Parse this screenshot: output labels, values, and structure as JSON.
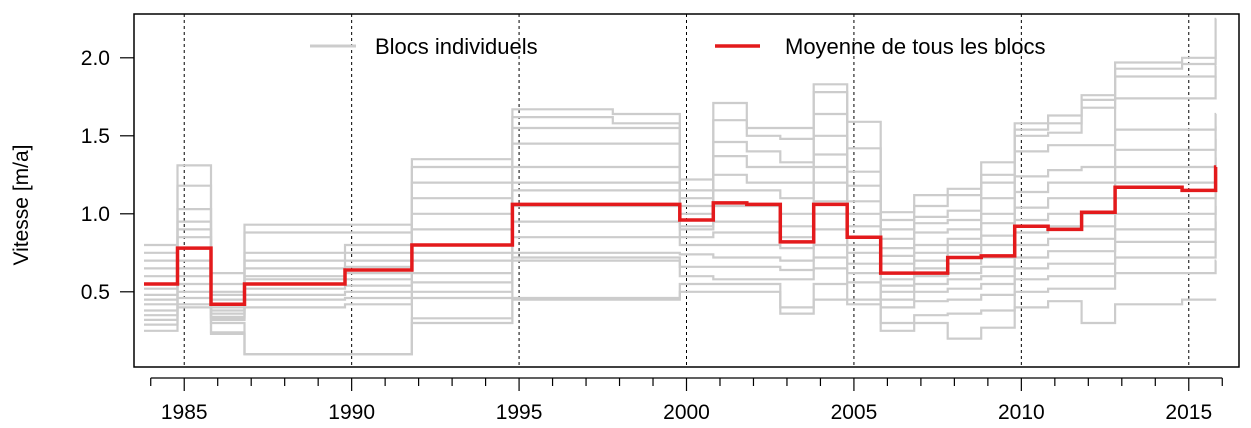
{
  "chart_data": {
    "type": "line",
    "title": "",
    "xlabel": "",
    "ylabel": "Vitesse [m/a]",
    "xlim": [
      1983.5,
      2016.5
    ],
    "ylim": [
      0.0,
      2.3
    ],
    "x_ticks": [
      1985,
      1990,
      1995,
      2000,
      2005,
      2010,
      2015
    ],
    "x_minor_ticks": [
      1984,
      1985,
      1986,
      1987,
      1988,
      1989,
      1990,
      1991,
      1992,
      1993,
      1994,
      1995,
      1996,
      1997,
      1998,
      1999,
      2000,
      2001,
      2002,
      2003,
      2004,
      2005,
      2006,
      2007,
      2008,
      2009,
      2010,
      2011,
      2012,
      2013,
      2014,
      2015,
      2016
    ],
    "y_ticks": [
      0.5,
      1.0,
      1.5,
      2.0
    ],
    "y_tick_labels": [
      "0.5",
      "1.0",
      "1.5",
      "2.0"
    ],
    "x_tick_labels": [
      "1985",
      "1990",
      "1995",
      "2000",
      "2005",
      "2010",
      "2015"
    ],
    "vertical_guides": [
      1985,
      1990,
      1995,
      2000,
      2005,
      2010,
      2015
    ],
    "legend": {
      "position": "top",
      "entries": [
        {
          "label": "Blocs individuels",
          "color": "#cccccc"
        },
        {
          "label": "Moyenne de tous les blocs",
          "color": "#e31a1c"
        }
      ]
    },
    "series": [
      {
        "name": "Moyenne de tous les blocs",
        "color": "#e31a1c",
        "step": true,
        "x": [
          1983.8,
          1984.8,
          1985.8,
          1986.8,
          1989.8,
          1991.8,
          1994.8,
          1997.8,
          1999.8,
          2000.8,
          2001.8,
          2002.8,
          2003.8,
          2004.8,
          2005.8,
          2006.8,
          2007.8,
          2008.8,
          2009.8,
          2010.8,
          2011.8,
          2012.8,
          2014.8,
          2015.8
        ],
        "values": [
          0.55,
          0.78,
          0.42,
          0.55,
          0.64,
          0.8,
          1.06,
          1.06,
          0.96,
          1.07,
          1.06,
          0.82,
          1.06,
          0.85,
          0.62,
          0.62,
          0.72,
          0.73,
          0.92,
          0.9,
          1.01,
          1.17,
          1.15,
          1.3
        ]
      }
    ],
    "individual_blocks": {
      "color": "#cccccc",
      "step": true,
      "x": [
        1983.8,
        1984.8,
        1985.8,
        1986.8,
        1989.8,
        1991.8,
        1994.8,
        1997.8,
        1999.8,
        2000.8,
        2001.8,
        2002.8,
        2003.8,
        2004.8,
        2005.8,
        2006.8,
        2007.8,
        2008.8,
        2009.8,
        2010.8,
        2011.8,
        2012.8,
        2014.8,
        2015.8
      ],
      "lines": [
        [
          0.8,
          1.31,
          0.62,
          0.93,
          0.93,
          1.35,
          1.67,
          1.64,
          1.22,
          1.71,
          1.55,
          1.55,
          1.83,
          1.59,
          1.01,
          1.12,
          1.16,
          1.33,
          1.58,
          1.63,
          1.76,
          1.97,
          2.0,
          2.25
        ],
        [
          0.75,
          1.18,
          0.55,
          0.88,
          0.88,
          1.3,
          1.62,
          1.58,
          1.15,
          1.6,
          1.5,
          1.48,
          1.78,
          1.42,
          0.96,
          1.05,
          1.12,
          1.25,
          1.54,
          1.58,
          1.73,
          1.93,
          1.96,
          2.05
        ],
        [
          0.7,
          1.03,
          0.5,
          0.75,
          0.8,
          1.2,
          1.55,
          1.55,
          1.1,
          1.46,
          1.4,
          1.33,
          1.64,
          1.27,
          0.9,
          0.98,
          1.02,
          1.2,
          1.5,
          1.52,
          1.68,
          1.88,
          1.88,
          1.95
        ],
        [
          0.65,
          0.95,
          0.48,
          0.7,
          0.75,
          1.1,
          1.45,
          1.45,
          1.05,
          1.37,
          1.3,
          1.3,
          1.5,
          1.18,
          0.84,
          0.94,
          0.96,
          1.1,
          1.4,
          1.44,
          1.44,
          1.74,
          1.74,
          1.88
        ],
        [
          0.6,
          0.9,
          0.45,
          0.65,
          0.7,
          1.0,
          1.3,
          1.3,
          1.0,
          1.25,
          1.2,
          1.2,
          1.38,
          1.08,
          0.78,
          0.88,
          0.9,
          1.0,
          1.24,
          1.28,
          1.3,
          1.54,
          1.54,
          1.64
        ],
        [
          0.55,
          0.85,
          0.42,
          0.6,
          0.66,
          0.9,
          1.2,
          1.2,
          0.96,
          1.15,
          1.15,
          1.1,
          1.3,
          1.0,
          0.73,
          0.8,
          0.84,
          0.94,
          1.14,
          1.2,
          1.2,
          1.41,
          1.41,
          1.56
        ],
        [
          0.52,
          0.78,
          0.4,
          0.58,
          0.62,
          0.8,
          1.15,
          1.15,
          0.92,
          1.05,
          1.05,
          1.0,
          1.2,
          0.92,
          0.68,
          0.75,
          0.8,
          0.86,
          1.04,
          1.1,
          1.1,
          1.3,
          1.3,
          1.48
        ],
        [
          0.48,
          0.7,
          0.38,
          0.55,
          0.58,
          0.75,
          1.05,
          1.05,
          0.9,
          0.95,
          0.95,
          0.92,
          1.08,
          0.85,
          0.62,
          0.7,
          0.75,
          0.8,
          0.96,
          1.0,
          1.0,
          1.2,
          1.2,
          1.36
        ],
        [
          0.45,
          0.65,
          0.36,
          0.52,
          0.54,
          0.7,
          0.95,
          0.95,
          0.85,
          0.88,
          0.88,
          0.85,
          1.0,
          0.8,
          0.58,
          0.65,
          0.68,
          0.72,
          0.88,
          0.92,
          0.92,
          1.1,
          1.1,
          1.25
        ],
        [
          0.42,
          0.6,
          0.34,
          0.48,
          0.5,
          0.62,
          0.85,
          0.85,
          0.8,
          0.8,
          0.8,
          0.78,
          0.9,
          0.75,
          0.54,
          0.6,
          0.62,
          0.66,
          0.8,
          0.84,
          0.84,
          1.0,
          1.0,
          1.15
        ],
        [
          0.38,
          0.55,
          0.33,
          0.45,
          0.46,
          0.56,
          0.75,
          0.75,
          0.74,
          0.72,
          0.72,
          0.7,
          0.8,
          0.68,
          0.5,
          0.55,
          0.58,
          0.6,
          0.72,
          0.76,
          0.76,
          0.9,
          0.9,
          1.05
        ],
        [
          0.35,
          0.5,
          0.32,
          0.4,
          0.42,
          0.5,
          0.72,
          0.72,
          0.66,
          0.66,
          0.66,
          0.64,
          0.72,
          0.62,
          0.45,
          0.5,
          0.52,
          0.55,
          0.65,
          0.68,
          0.68,
          0.82,
          0.82,
          0.95
        ],
        [
          0.32,
          0.46,
          0.3,
          0.1,
          0.1,
          0.46,
          0.7,
          0.7,
          0.6,
          0.58,
          0.58,
          0.58,
          0.65,
          0.56,
          0.4,
          0.44,
          0.45,
          0.48,
          0.58,
          0.6,
          0.6,
          0.72,
          0.72,
          0.82
        ],
        [
          0.29,
          0.42,
          0.24,
          0.1,
          0.1,
          0.33,
          0.46,
          0.46,
          0.55,
          0.55,
          0.55,
          0.4,
          0.55,
          0.45,
          0.3,
          0.35,
          0.36,
          0.38,
          0.5,
          0.52,
          0.52,
          0.62,
          0.62,
          0.7
        ],
        [
          0.25,
          0.4,
          0.23,
          0.1,
          0.1,
          0.3,
          0.45,
          0.45,
          0.5,
          0.5,
          0.5,
          0.36,
          0.45,
          0.42,
          0.25,
          0.3,
          0.2,
          0.27,
          0.4,
          0.44,
          0.3,
          0.42,
          0.45,
          0.45
        ]
      ]
    }
  }
}
